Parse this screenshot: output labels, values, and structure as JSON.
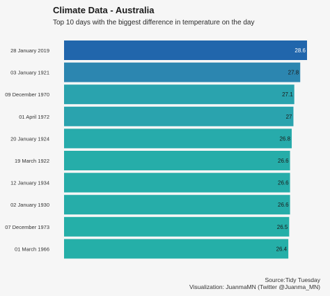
{
  "chart_data": {
    "type": "bar",
    "orientation": "horizontal",
    "title": "Climate Data - Australia",
    "subtitle": "Top 10 days with the biggest difference in temperature on the day",
    "categories": [
      "28 January 2019",
      "03 January 1921",
      "09 December 1970",
      "01 April 1972",
      "20 January 1924",
      "19 March 1922",
      "12 January 1934",
      "02 January 1930",
      "07 December 1973",
      "01 March 1966"
    ],
    "values": [
      28.6,
      27.8,
      27.1,
      27,
      26.8,
      26.6,
      26.6,
      26.6,
      26.5,
      26.4
    ],
    "value_labels": [
      "28.6",
      "27.8",
      "27.1",
      "27",
      "26.8",
      "26.6",
      "26.6",
      "26.6",
      "26.5",
      "26.4"
    ],
    "xlim": [
      0,
      28.6
    ],
    "grid": false,
    "colors": [
      "#2166ac",
      "#2c86b0",
      "#2aa3ae",
      "#2aa3ae",
      "#27abab",
      "#26ada9",
      "#26ada9",
      "#26ada9",
      "#25afa8",
      "#25afa8"
    ],
    "label_colors": [
      "#ffffff",
      "#1a1a1a",
      "#1a1a1a",
      "#1a1a1a",
      "#1a1a1a",
      "#1a1a1a",
      "#1a1a1a",
      "#1a1a1a",
      "#1a1a1a",
      "#1a1a1a"
    ]
  },
  "caption": {
    "source": "Source:Tidy Tuesday",
    "credit": "Visualization: JuanmaMN (Twitter @Juanma_MN)"
  }
}
